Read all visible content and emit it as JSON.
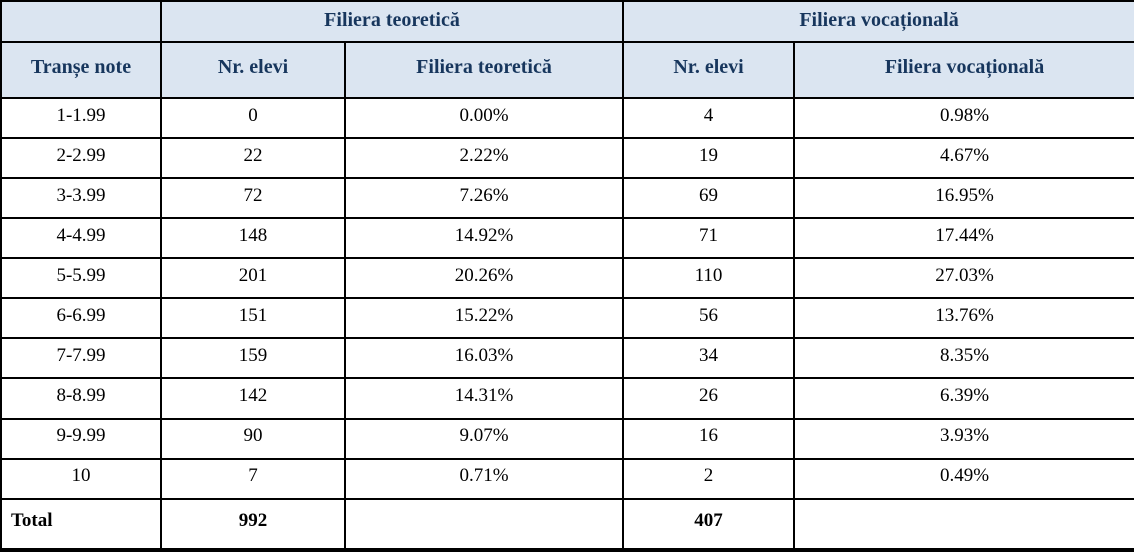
{
  "table": {
    "group_headers": {
      "corner": "",
      "theoretical": "Filiera teoretică",
      "vocational": "Filiera vocațională"
    },
    "column_headers": [
      "Tranșe note",
      "Nr. elevi",
      "Filiera teoretică",
      "Nr. elevi",
      "Filiera vocațională"
    ],
    "rows": [
      [
        "1-1.99",
        "0",
        "0.00%",
        "4",
        "0.98%"
      ],
      [
        "2-2.99",
        "22",
        "2.22%",
        "19",
        "4.67%"
      ],
      [
        "3-3.99",
        "72",
        "7.26%",
        "69",
        "16.95%"
      ],
      [
        "4-4.99",
        "148",
        "14.92%",
        "71",
        "17.44%"
      ],
      [
        "5-5.99",
        "201",
        "20.26%",
        "110",
        "27.03%"
      ],
      [
        "6-6.99",
        "151",
        "15.22%",
        "56",
        "13.76%"
      ],
      [
        "7-7.99",
        "159",
        "16.03%",
        "34",
        "8.35%"
      ],
      [
        "8-8.99",
        "142",
        "14.31%",
        "26",
        "6.39%"
      ],
      [
        "9-9.99",
        "90",
        "9.07%",
        "16",
        "3.93%"
      ],
      [
        "10",
        "7",
        "0.71%",
        "2",
        "0.49%"
      ]
    ],
    "total_row": {
      "label": "Total",
      "theoretical_count": "992",
      "theoretical_pct": "",
      "vocational_count": "407",
      "vocational_pct": ""
    },
    "colors": {
      "header_bg": "#dbe5f1",
      "header_text": "#17365d",
      "body_text": "#000000",
      "border": "#000000"
    }
  }
}
